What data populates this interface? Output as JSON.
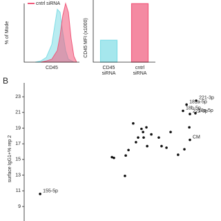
{
  "chart_data": [
    {
      "type": "area",
      "y_label": "% of Mode",
      "x_label": "CD45",
      "xlim": [
        0,
        100
      ],
      "ylim": [
        0,
        100
      ],
      "series": [
        {
          "color": "#7fdde6",
          "values": [
            0,
            2,
            8,
            30,
            60,
            90,
            85,
            50,
            20,
            5,
            0
          ],
          "x": [
            20,
            30,
            40,
            50,
            55,
            60,
            65,
            70,
            75,
            80,
            90
          ]
        },
        {
          "name": "cntrl siRNA",
          "color": "#f0587a",
          "values": [
            0,
            2,
            5,
            20,
            45,
            80,
            100,
            85,
            40,
            10,
            0
          ],
          "x": [
            30,
            40,
            50,
            60,
            65,
            70,
            75,
            80,
            85,
            90,
            95
          ]
        }
      ]
    },
    {
      "type": "bar",
      "y_label": "CD45 MFI (x1000)",
      "categories": [
        "CD45 siRNA",
        "cntrl siRNA"
      ],
      "values": [
        6,
        16
      ],
      "colors": [
        "#7fdde6",
        "#f0587a"
      ],
      "ylim": [
        0,
        17
      ]
    },
    {
      "type": "scatter",
      "panel_label": "B",
      "y_label": "surface IgG1+% rep 2",
      "xlim": [
        0,
        100
      ],
      "ylim": [
        7,
        25
      ],
      "yticks": [
        9,
        11,
        13,
        15,
        17,
        19,
        21,
        23
      ],
      "color": "#111111",
      "x": [
        8.1,
        44.6,
        45.6,
        51.6,
        51.2,
        53,
        55.4,
        56.8,
        57.9,
        59.6,
        60.4,
        60.7,
        62.1,
        62.5,
        64.6,
        68.4,
        69.8,
        72.3,
        74.4,
        78.2,
        81.4,
        83.9,
        82.5,
        87.4,
        80.7,
        84.2,
        87,
        84.2
      ],
      "values": [
        10.6,
        15.3,
        15.2,
        15.5,
        12.9,
        16.2,
        19.6,
        17.2,
        17.8,
        18.9,
        18.5,
        17.8,
        19.1,
        16.7,
        18.2,
        17.8,
        16.7,
        16.5,
        18.5,
        15.6,
        16.3,
        19.1,
        22.0,
        22.5,
        21.2,
        20.8,
        20.9,
        17.5
      ],
      "labels": [
        "155-5p",
        null,
        null,
        null,
        null,
        null,
        null,
        null,
        null,
        null,
        null,
        null,
        null,
        null,
        null,
        null,
        null,
        null,
        null,
        null,
        null,
        null,
        "181a-5p",
        "221-3p",
        "18b-5p",
        "222-3p",
        "18a-5p",
        "CM"
      ]
    }
  ]
}
